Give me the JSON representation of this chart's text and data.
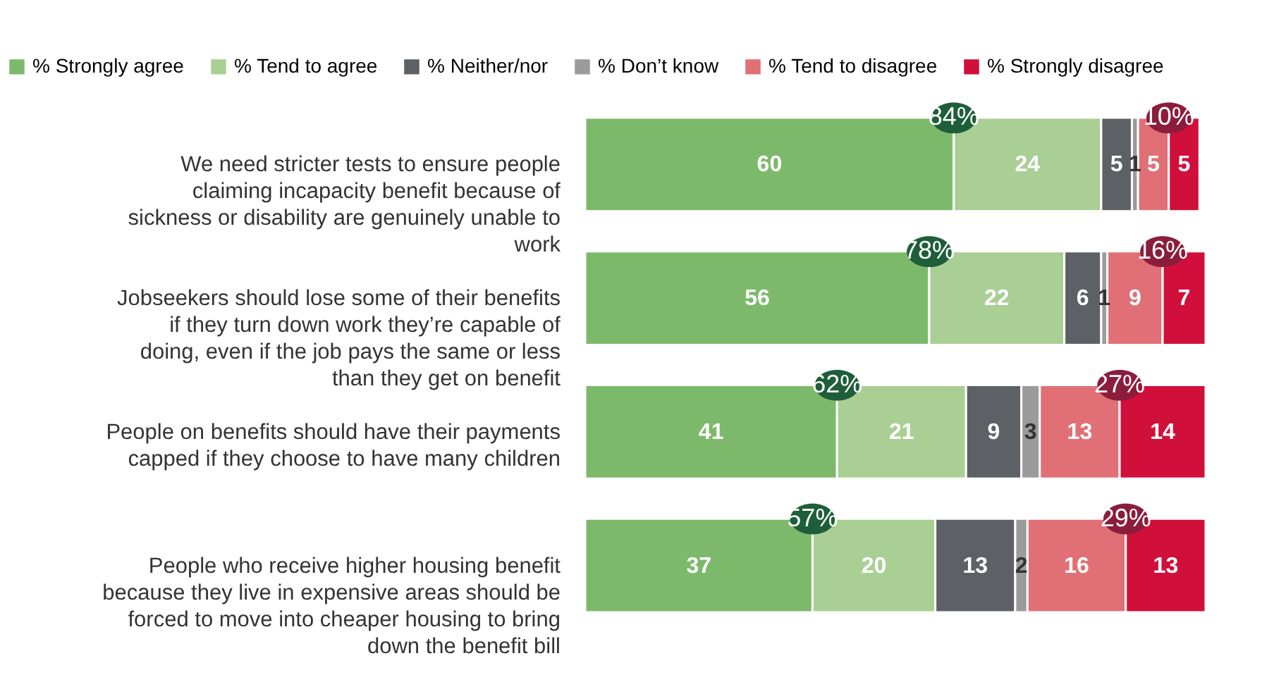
{
  "chart_data": {
    "type": "bar",
    "orientation": "horizontal",
    "stacked": true,
    "data_labels": true,
    "legend": "top",
    "grid": false,
    "tick_labels": "y",
    "categories": [
      "We need stricter tests to ensure people claiming incapacity benefit because of sickness or disability are genuinely unable to work",
      "Jobseekers should lose some of their benefits if they turn down work they’re capable of doing, even if the job pays the same or less than they get on benefit",
      "People on benefits should have their payments capped if they choose to have many children",
      "People who receive higher housing benefit because they live in expensive areas should be forced to move into cheaper housing to bring down the benefit bill"
    ],
    "series": [
      {
        "name": "% Strongly agree",
        "color": "#7db96a",
        "values": [
          60,
          56,
          41,
          37
        ]
      },
      {
        "name": "% Tend to agree",
        "color": "#a9cf95",
        "values": [
          24,
          22,
          21,
          20
        ]
      },
      {
        "name": "% Neither/nor",
        "color": "#5d6166",
        "values": [
          5,
          6,
          9,
          13
        ]
      },
      {
        "name": "% Don’t know",
        "color": "#9b9b9b",
        "values": [
          1,
          1,
          3,
          2
        ]
      },
      {
        "name": "% Tend to disagree",
        "color": "#e07075",
        "values": [
          5,
          9,
          13,
          16
        ]
      },
      {
        "name": "% Strongly disagree",
        "color": "#d0103a",
        "values": [
          5,
          7,
          14,
          13
        ]
      }
    ],
    "annotations": [
      "84%",
      "10%",
      "78%",
      "16%",
      "62%",
      "27%",
      "57%",
      "29%"
    ]
  }
}
